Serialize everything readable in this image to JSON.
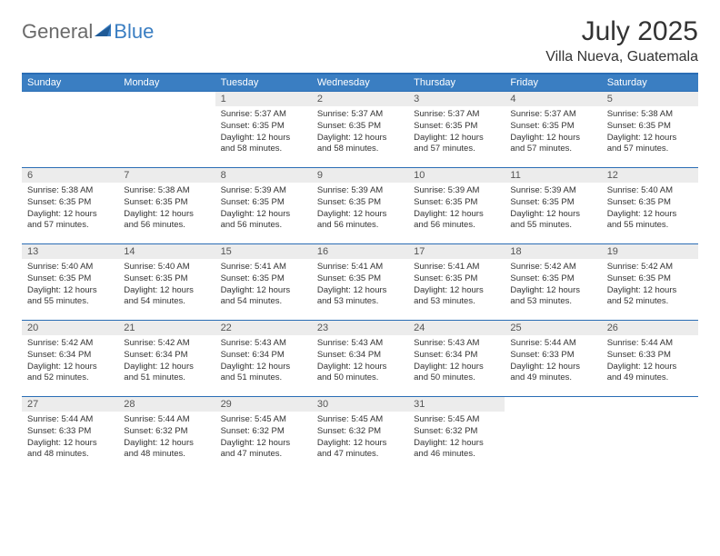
{
  "logo": {
    "general": "General",
    "blue": "Blue"
  },
  "title": "July 2025",
  "location": "Villa Nueva, Guatemala",
  "colors": {
    "header_bg": "#3a7ec2",
    "header_text": "#ffffff",
    "border": "#2a6db5",
    "daynum_bg": "#ececec",
    "text": "#333333",
    "logo_gray": "#6a6a6a",
    "logo_blue": "#3a7ec2"
  },
  "weekdays": [
    "Sunday",
    "Monday",
    "Tuesday",
    "Wednesday",
    "Thursday",
    "Friday",
    "Saturday"
  ],
  "weeks": [
    [
      null,
      null,
      {
        "n": "1",
        "sr": "5:37 AM",
        "ss": "6:35 PM",
        "dl": "12 hours and 58 minutes."
      },
      {
        "n": "2",
        "sr": "5:37 AM",
        "ss": "6:35 PM",
        "dl": "12 hours and 58 minutes."
      },
      {
        "n": "3",
        "sr": "5:37 AM",
        "ss": "6:35 PM",
        "dl": "12 hours and 57 minutes."
      },
      {
        "n": "4",
        "sr": "5:37 AM",
        "ss": "6:35 PM",
        "dl": "12 hours and 57 minutes."
      },
      {
        "n": "5",
        "sr": "5:38 AM",
        "ss": "6:35 PM",
        "dl": "12 hours and 57 minutes."
      }
    ],
    [
      {
        "n": "6",
        "sr": "5:38 AM",
        "ss": "6:35 PM",
        "dl": "12 hours and 57 minutes."
      },
      {
        "n": "7",
        "sr": "5:38 AM",
        "ss": "6:35 PM",
        "dl": "12 hours and 56 minutes."
      },
      {
        "n": "8",
        "sr": "5:39 AM",
        "ss": "6:35 PM",
        "dl": "12 hours and 56 minutes."
      },
      {
        "n": "9",
        "sr": "5:39 AM",
        "ss": "6:35 PM",
        "dl": "12 hours and 56 minutes."
      },
      {
        "n": "10",
        "sr": "5:39 AM",
        "ss": "6:35 PM",
        "dl": "12 hours and 56 minutes."
      },
      {
        "n": "11",
        "sr": "5:39 AM",
        "ss": "6:35 PM",
        "dl": "12 hours and 55 minutes."
      },
      {
        "n": "12",
        "sr": "5:40 AM",
        "ss": "6:35 PM",
        "dl": "12 hours and 55 minutes."
      }
    ],
    [
      {
        "n": "13",
        "sr": "5:40 AM",
        "ss": "6:35 PM",
        "dl": "12 hours and 55 minutes."
      },
      {
        "n": "14",
        "sr": "5:40 AM",
        "ss": "6:35 PM",
        "dl": "12 hours and 54 minutes."
      },
      {
        "n": "15",
        "sr": "5:41 AM",
        "ss": "6:35 PM",
        "dl": "12 hours and 54 minutes."
      },
      {
        "n": "16",
        "sr": "5:41 AM",
        "ss": "6:35 PM",
        "dl": "12 hours and 53 minutes."
      },
      {
        "n": "17",
        "sr": "5:41 AM",
        "ss": "6:35 PM",
        "dl": "12 hours and 53 minutes."
      },
      {
        "n": "18",
        "sr": "5:42 AM",
        "ss": "6:35 PM",
        "dl": "12 hours and 53 minutes."
      },
      {
        "n": "19",
        "sr": "5:42 AM",
        "ss": "6:35 PM",
        "dl": "12 hours and 52 minutes."
      }
    ],
    [
      {
        "n": "20",
        "sr": "5:42 AM",
        "ss": "6:34 PM",
        "dl": "12 hours and 52 minutes."
      },
      {
        "n": "21",
        "sr": "5:42 AM",
        "ss": "6:34 PM",
        "dl": "12 hours and 51 minutes."
      },
      {
        "n": "22",
        "sr": "5:43 AM",
        "ss": "6:34 PM",
        "dl": "12 hours and 51 minutes."
      },
      {
        "n": "23",
        "sr": "5:43 AM",
        "ss": "6:34 PM",
        "dl": "12 hours and 50 minutes."
      },
      {
        "n": "24",
        "sr": "5:43 AM",
        "ss": "6:34 PM",
        "dl": "12 hours and 50 minutes."
      },
      {
        "n": "25",
        "sr": "5:44 AM",
        "ss": "6:33 PM",
        "dl": "12 hours and 49 minutes."
      },
      {
        "n": "26",
        "sr": "5:44 AM",
        "ss": "6:33 PM",
        "dl": "12 hours and 49 minutes."
      }
    ],
    [
      {
        "n": "27",
        "sr": "5:44 AM",
        "ss": "6:33 PM",
        "dl": "12 hours and 48 minutes."
      },
      {
        "n": "28",
        "sr": "5:44 AM",
        "ss": "6:32 PM",
        "dl": "12 hours and 48 minutes."
      },
      {
        "n": "29",
        "sr": "5:45 AM",
        "ss": "6:32 PM",
        "dl": "12 hours and 47 minutes."
      },
      {
        "n": "30",
        "sr": "5:45 AM",
        "ss": "6:32 PM",
        "dl": "12 hours and 47 minutes."
      },
      {
        "n": "31",
        "sr": "5:45 AM",
        "ss": "6:32 PM",
        "dl": "12 hours and 46 minutes."
      },
      null,
      null
    ]
  ],
  "labels": {
    "sunrise": "Sunrise:",
    "sunset": "Sunset:",
    "daylight": "Daylight:"
  }
}
